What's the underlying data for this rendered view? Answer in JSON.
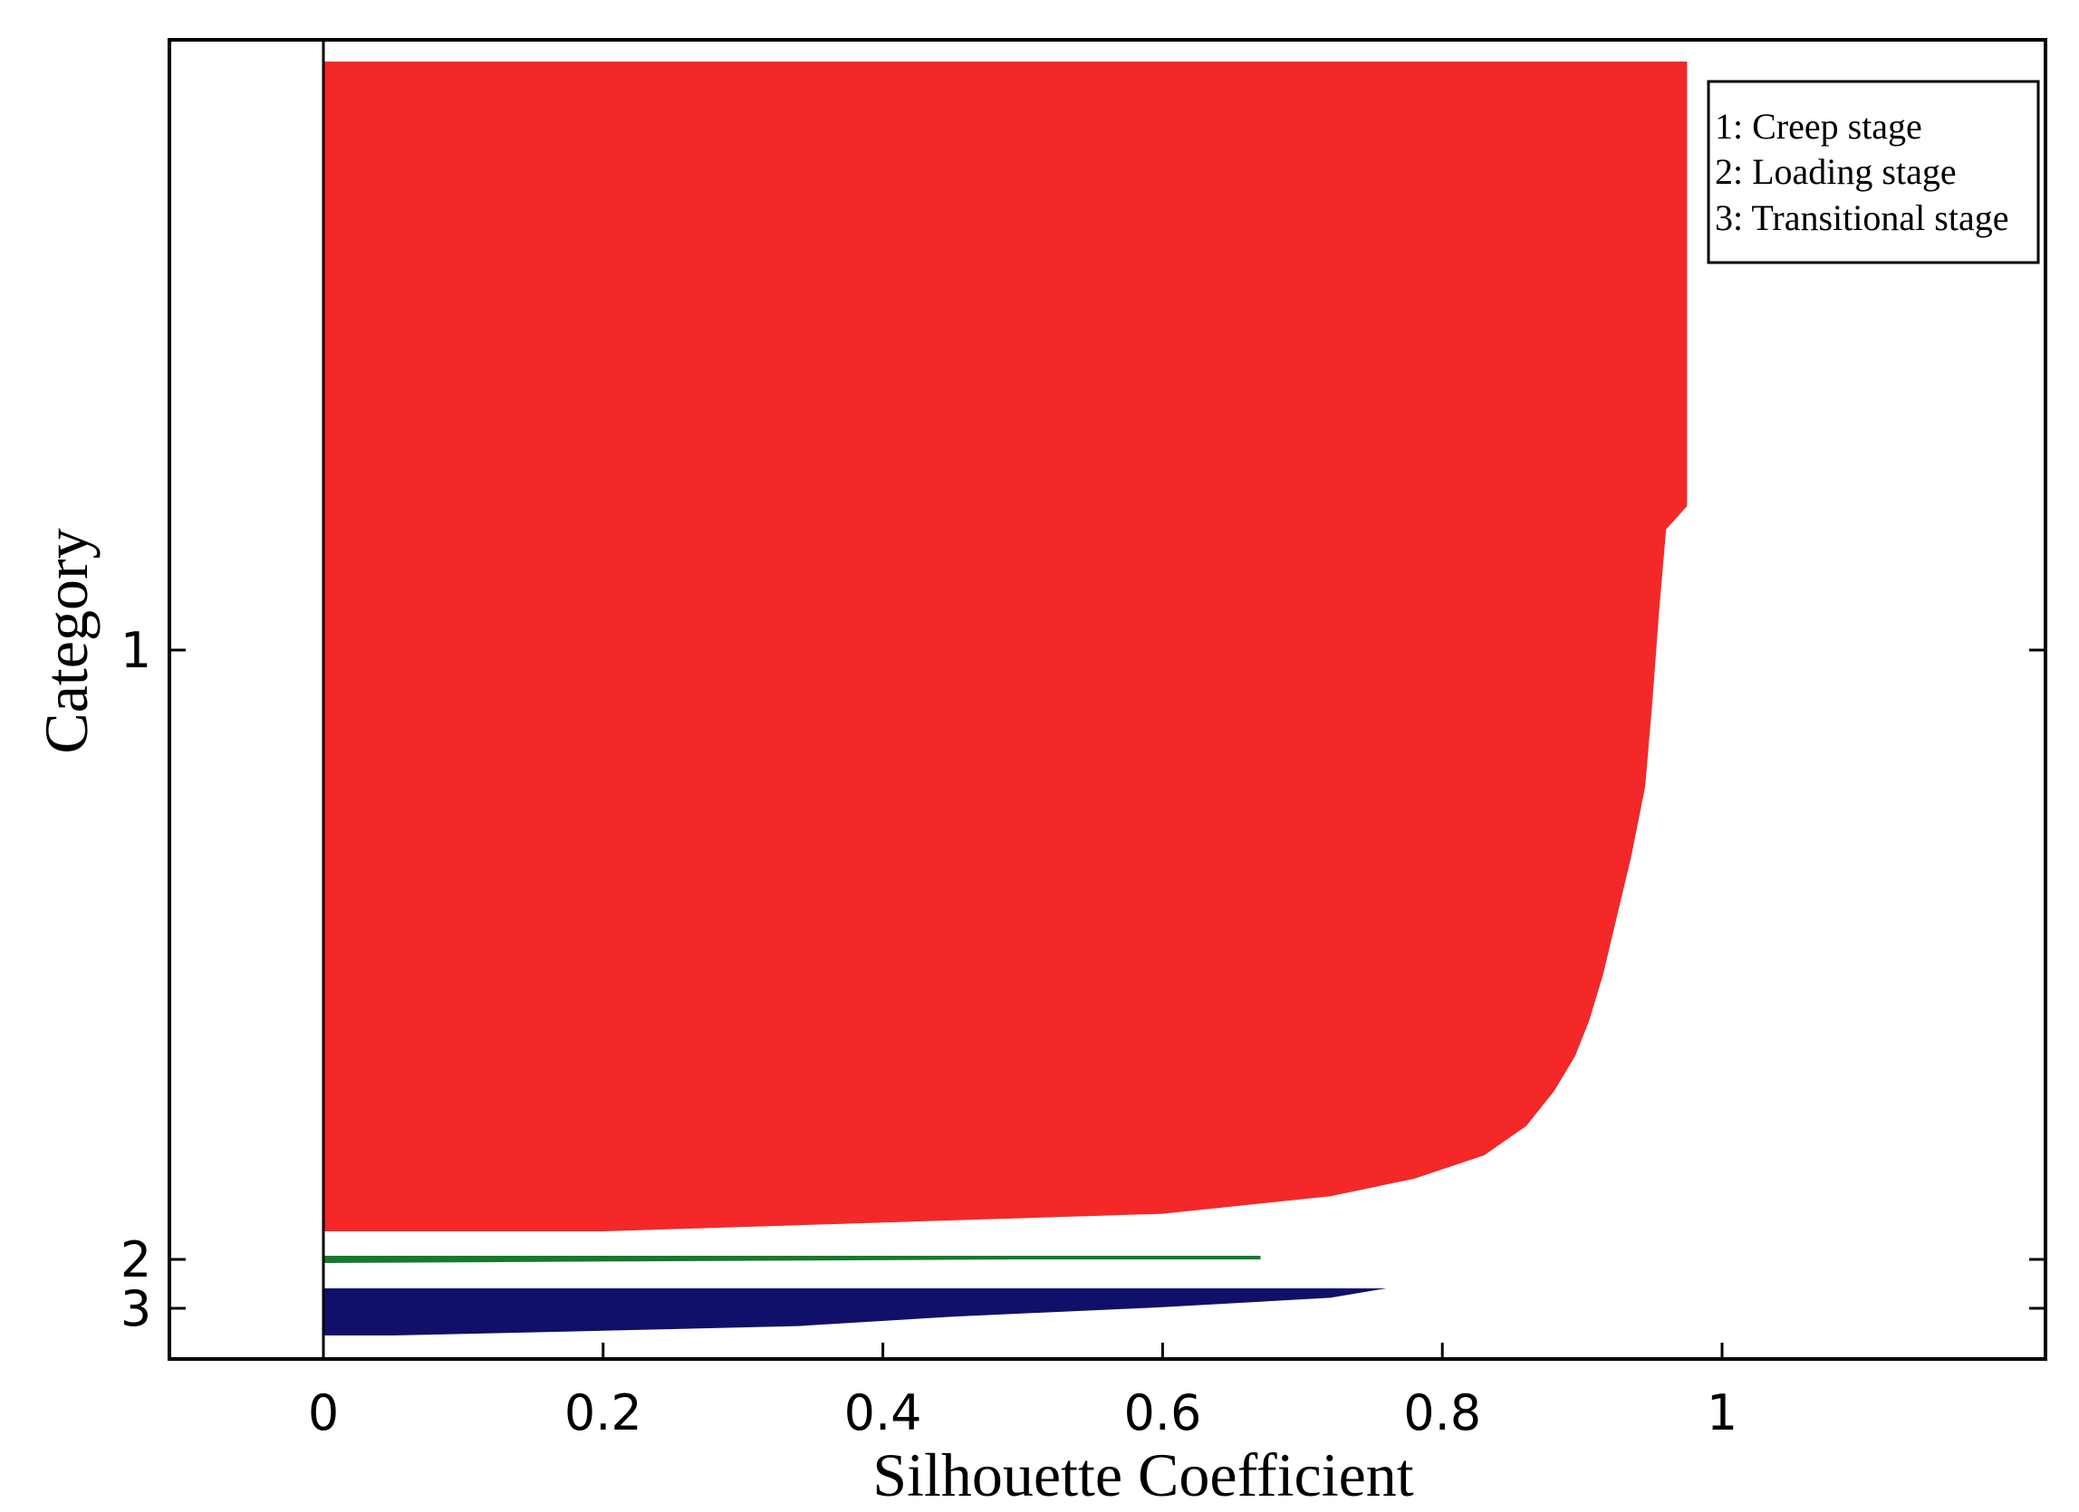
{
  "chart_data": {
    "type": "bar",
    "title": "",
    "xlabel": "Silhouette Coefficient",
    "ylabel": "Category",
    "xlim": [
      -0.22,
      2.1
    ],
    "xticks": [
      "0",
      "0.2",
      "0.4",
      "0.6",
      "0.8",
      "1"
    ],
    "yticks": [
      "1",
      "2",
      "3"
    ],
    "grid": false,
    "legend": {
      "placement": "top-right",
      "entries": [
        "1: Creep stage",
        "2: Loading stage",
        "3: Transitional stage"
      ]
    },
    "series": [
      {
        "cluster": "1",
        "color": "#f42828",
        "profile": [
          [
            0.0,
            0.975
          ],
          [
            0.38,
            0.975
          ],
          [
            0.4,
            0.96
          ],
          [
            0.47,
            0.955
          ],
          [
            0.55,
            0.95
          ],
          [
            0.62,
            0.945
          ],
          [
            0.68,
            0.935
          ],
          [
            0.73,
            0.925
          ],
          [
            0.78,
            0.915
          ],
          [
            0.82,
            0.905
          ],
          [
            0.85,
            0.895
          ],
          [
            0.88,
            0.88
          ],
          [
            0.91,
            0.86
          ],
          [
            0.935,
            0.83
          ],
          [
            0.955,
            0.78
          ],
          [
            0.97,
            0.72
          ],
          [
            0.985,
            0.6
          ],
          [
            1.0,
            0.2
          ]
        ]
      },
      {
        "cluster": "2",
        "color": "#167a2c",
        "profile": [
          [
            0.0,
            0.67
          ],
          [
            0.5,
            0.67
          ],
          [
            0.5,
            0.5
          ],
          [
            1.0,
            0.0
          ]
        ]
      },
      {
        "cluster": "3",
        "color": "#10106a",
        "profile": [
          [
            0.0,
            0.76
          ],
          [
            0.2,
            0.72
          ],
          [
            0.4,
            0.6
          ],
          [
            0.6,
            0.45
          ],
          [
            0.8,
            0.34
          ],
          [
            0.9,
            0.2
          ],
          [
            1.0,
            0.05
          ]
        ]
      }
    ]
  }
}
